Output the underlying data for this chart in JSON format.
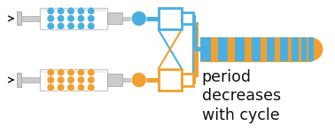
{
  "blue": "#4AAFE0",
  "orange": "#F0A030",
  "dark_gray": "#666666",
  "light_gray": "#CCCCCC",
  "mid_gray": "#AAAAAA",
  "white": "#FFFFFF",
  "black": "#111111",
  "text": "period\ndecreases\nwith cycle",
  "fig_width": 3.78,
  "fig_height": 1.51,
  "dpi": 100
}
